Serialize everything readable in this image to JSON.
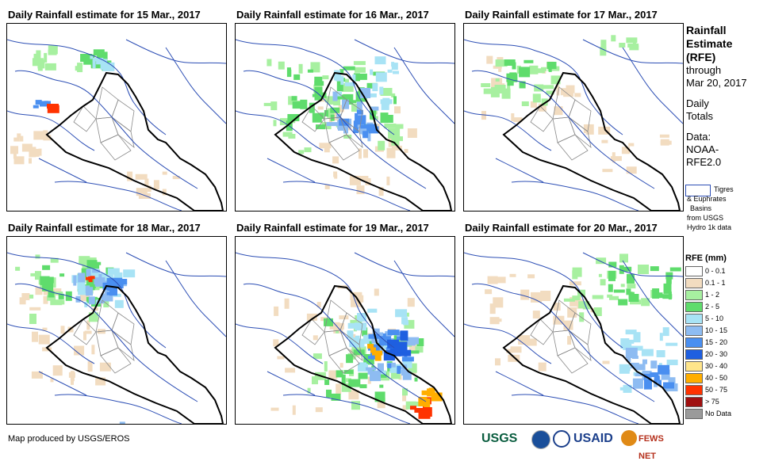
{
  "panels": [
    {
      "title": "Daily Rainfall estimate for 15 Mar., 2017",
      "dominant_rainfall_class": "0.1 - 1"
    },
    {
      "title": "Daily Rainfall estimate for 16 Mar., 2017",
      "dominant_rainfall_class": "2 - 5"
    },
    {
      "title": "Daily Rainfall estimate for 17 Mar., 2017",
      "dominant_rainfall_class": "0.1 - 1"
    },
    {
      "title": "Daily Rainfall estimate for 18 Mar., 2017",
      "dominant_rainfall_class": "10 - 15"
    },
    {
      "title": "Daily Rainfall estimate for 19 Mar., 2017",
      "dominant_rainfall_class": "15 - 20"
    },
    {
      "title": "Daily Rainfall estimate for 20 Mar., 2017",
      "dominant_rainfall_class": "5 - 10"
    }
  ],
  "sidebar": {
    "title_lines": [
      "Rainfall",
      "Estimate",
      "(RFE)"
    ],
    "through_lines": [
      "through",
      "Mar 20, 2017"
    ],
    "totals_lines": [
      "Daily",
      "Totals"
    ],
    "data_lines": [
      "Data:",
      "NOAA-",
      "RFE2.0"
    ],
    "basin_lines": [
      "Tigres",
      "& Euphrates",
      "Basins",
      "from USGS",
      "Hydro 1k data"
    ]
  },
  "legend": {
    "title": "RFE (mm)",
    "items": [
      {
        "label": "0 - 0.1",
        "color": "#ffffff"
      },
      {
        "label": "0.1 - 1",
        "color": "#f2dcc0"
      },
      {
        "label": "1 - 2",
        "color": "#a7f0a0"
      },
      {
        "label": "2 - 5",
        "color": "#5fdc6c"
      },
      {
        "label": "5 - 10",
        "color": "#a8e3f5"
      },
      {
        "label": "10 - 15",
        "color": "#8ebcf2"
      },
      {
        "label": "15 - 20",
        "color": "#4a8ff0"
      },
      {
        "label": "20 - 30",
        "color": "#1f5fe0"
      },
      {
        "label": "30 - 40",
        "color": "#ffe58a"
      },
      {
        "label": "40 - 50",
        "color": "#ffae00"
      },
      {
        "label": "50 - 75",
        "color": "#ff3300"
      },
      {
        "label": "> 75",
        "color": "#a01010"
      },
      {
        "label": "No Data",
        "color": "#9a9a9a"
      }
    ]
  },
  "footer": {
    "credit": "Map produced by USGS/EROS",
    "logos": [
      "USGS",
      "USAID",
      "FEWS NET"
    ]
  }
}
